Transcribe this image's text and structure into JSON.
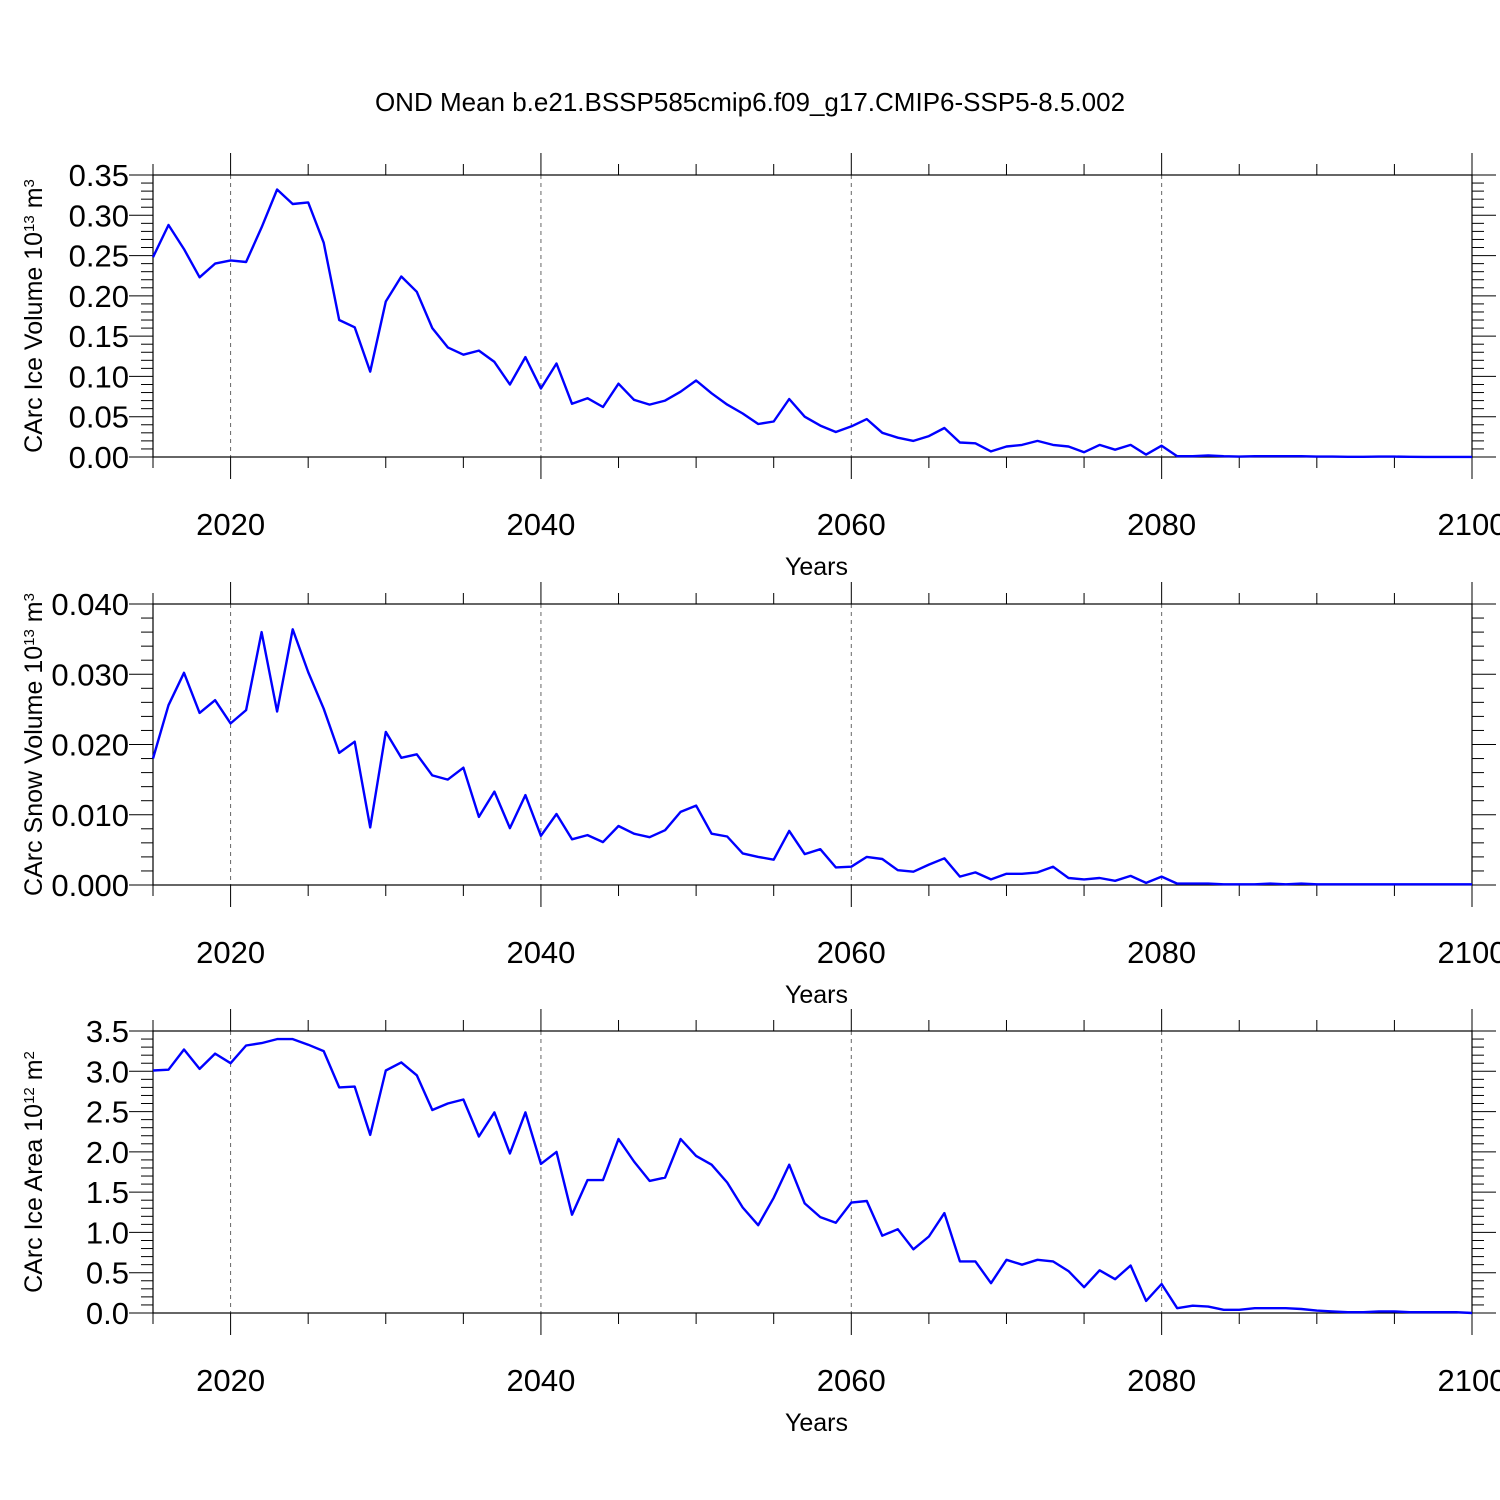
{
  "figure": {
    "title": "OND Mean b.e21.BSSP585cmip6.f09_g17.CMIP6-SSP5-8.5.002"
  },
  "chart_data": [
    {
      "type": "line",
      "title": "",
      "xlabel": "Years",
      "ylabel": "CArc Ice Volume 10",
      "ylabel_exp": "13",
      "ylabel_unit": " m",
      "ylabel_unit_exp": "3",
      "xlim": [
        2015,
        2100
      ],
      "ylim": [
        0,
        0.35
      ],
      "x_ticks": [
        "2020",
        "2040",
        "2060",
        "2080",
        "2100"
      ],
      "y_ticks": [
        "0.00",
        "0.05",
        "0.10",
        "0.15",
        "0.20",
        "0.25",
        "0.30",
        "0.35"
      ],
      "grid": "dashed vertical at major x ticks",
      "color": "#0000ff",
      "series": [
        {
          "x": [
            2015,
            2016,
            2017,
            2018,
            2019,
            2020,
            2021,
            2022,
            2023,
            2024,
            2025,
            2026,
            2027,
            2028,
            2029,
            2030,
            2031,
            2032,
            2033,
            2034,
            2035,
            2036,
            2037,
            2038,
            2039,
            2040,
            2041,
            2042,
            2043,
            2044,
            2045,
            2046,
            2047,
            2048,
            2049,
            2050,
            2051,
            2052,
            2053,
            2054,
            2055,
            2056,
            2057,
            2058,
            2059,
            2060,
            2061,
            2062,
            2063,
            2064,
            2065,
            2066,
            2067,
            2068,
            2069,
            2070,
            2071,
            2072,
            2073,
            2074,
            2075,
            2076,
            2077,
            2078,
            2079,
            2080,
            2081,
            2082,
            2083,
            2084,
            2085,
            2086,
            2087,
            2088,
            2089,
            2090,
            2091,
            2092,
            2093,
            2094,
            2095,
            2096,
            2097,
            2098,
            2099,
            2100
          ],
          "values": [
            0.248,
            0.288,
            0.258,
            0.223,
            0.24,
            0.244,
            0.242,
            0.285,
            0.332,
            0.314,
            0.316,
            0.266,
            0.17,
            0.161,
            0.106,
            0.193,
            0.224,
            0.205,
            0.16,
            0.136,
            0.127,
            0.132,
            0.118,
            0.09,
            0.124,
            0.085,
            0.116,
            0.066,
            0.073,
            0.062,
            0.091,
            0.071,
            0.065,
            0.07,
            0.081,
            0.095,
            0.079,
            0.065,
            0.054,
            0.041,
            0.044,
            0.072,
            0.05,
            0.039,
            0.031,
            0.038,
            0.047,
            0.03,
            0.024,
            0.02,
            0.026,
            0.036,
            0.018,
            0.017,
            0.007,
            0.013,
            0.015,
            0.02,
            0.015,
            0.013,
            0.006,
            0.015,
            0.009,
            0.015,
            0.003,
            0.014,
            0.001,
            0.001,
            0.002,
            0.001,
            0.0005,
            0.001,
            0.001,
            0.001,
            0.001,
            0.0005,
            0.0005,
            0.0002,
            0.0002,
            0.0005,
            0.0005,
            0.0002,
            0.0001,
            0.0001,
            0.0001,
            0.0001
          ]
        }
      ]
    },
    {
      "type": "line",
      "title": "",
      "xlabel": "Years",
      "ylabel": "CArc Snow Volume 10",
      "ylabel_exp": "13",
      "ylabel_unit": " m",
      "ylabel_unit_exp": "3",
      "xlim": [
        2015,
        2100
      ],
      "ylim": [
        0,
        0.04
      ],
      "x_ticks": [
        "2020",
        "2040",
        "2060",
        "2080",
        "2100"
      ],
      "y_ticks": [
        "0.000",
        "0.010",
        "0.020",
        "0.030",
        "0.040"
      ],
      "grid": "dashed vertical at major x ticks",
      "color": "#0000ff",
      "series": [
        {
          "x": [
            2015,
            2016,
            2017,
            2018,
            2019,
            2020,
            2021,
            2022,
            2023,
            2024,
            2025,
            2026,
            2027,
            2028,
            2029,
            2030,
            2031,
            2032,
            2033,
            2034,
            2035,
            2036,
            2037,
            2038,
            2039,
            2040,
            2041,
            2042,
            2043,
            2044,
            2045,
            2046,
            2047,
            2048,
            2049,
            2050,
            2051,
            2052,
            2053,
            2054,
            2055,
            2056,
            2057,
            2058,
            2059,
            2060,
            2061,
            2062,
            2063,
            2064,
            2065,
            2066,
            2067,
            2068,
            2069,
            2070,
            2071,
            2072,
            2073,
            2074,
            2075,
            2076,
            2077,
            2078,
            2079,
            2080,
            2081,
            2082,
            2083,
            2084,
            2085,
            2086,
            2087,
            2088,
            2089,
            2090,
            2091,
            2092,
            2093,
            2094,
            2095,
            2096,
            2097,
            2098,
            2099,
            2100
          ],
          "values": [
            0.018,
            0.0256,
            0.0302,
            0.0245,
            0.0263,
            0.023,
            0.0249,
            0.036,
            0.0247,
            0.0364,
            0.0303,
            0.0251,
            0.0188,
            0.0204,
            0.0082,
            0.0218,
            0.0181,
            0.0186,
            0.0156,
            0.015,
            0.0167,
            0.0097,
            0.0133,
            0.0081,
            0.0128,
            0.007,
            0.0101,
            0.0065,
            0.0071,
            0.0061,
            0.0084,
            0.0073,
            0.0068,
            0.0078,
            0.0104,
            0.0113,
            0.0073,
            0.0069,
            0.0045,
            0.004,
            0.0036,
            0.0077,
            0.0044,
            0.0051,
            0.0025,
            0.0026,
            0.004,
            0.0037,
            0.0021,
            0.0019,
            0.0029,
            0.0038,
            0.0012,
            0.0018,
            0.0008,
            0.0016,
            0.0016,
            0.0018,
            0.0026,
            0.001,
            0.0008,
            0.001,
            0.0006,
            0.0013,
            0.0003,
            0.0012,
            0.0002,
            0.0002,
            0.0002,
            0.0001,
            0.0001,
            0.0001,
            0.0002,
            0.0001,
            0.0002,
            0.0001,
            0.0001,
            0.0001,
            0.0001,
            0.0001,
            0.0001,
            0.0001,
            0.0001,
            0.0001,
            0.0001,
            0.0001
          ]
        }
      ]
    },
    {
      "type": "line",
      "title": "",
      "xlabel": "Years",
      "ylabel": "CArc Ice Area 10",
      "ylabel_exp": "12",
      "ylabel_unit": " m",
      "ylabel_unit_exp": "2",
      "xlim": [
        2015,
        2100
      ],
      "ylim": [
        0,
        3.5
      ],
      "x_ticks": [
        "2020",
        "2040",
        "2060",
        "2080",
        "2100"
      ],
      "y_ticks": [
        "0.0",
        "0.5",
        "1.0",
        "1.5",
        "2.0",
        "2.5",
        "3.0",
        "3.5"
      ],
      "grid": "dashed vertical at major x ticks",
      "color": "#0000ff",
      "series": [
        {
          "x": [
            2015,
            2016,
            2017,
            2018,
            2019,
            2020,
            2021,
            2022,
            2023,
            2024,
            2025,
            2026,
            2027,
            2028,
            2029,
            2030,
            2031,
            2032,
            2033,
            2034,
            2035,
            2036,
            2037,
            2038,
            2039,
            2040,
            2041,
            2042,
            2043,
            2044,
            2045,
            2046,
            2047,
            2048,
            2049,
            2050,
            2051,
            2052,
            2053,
            2054,
            2055,
            2056,
            2057,
            2058,
            2059,
            2060,
            2061,
            2062,
            2063,
            2064,
            2065,
            2066,
            2067,
            2068,
            2069,
            2070,
            2071,
            2072,
            2073,
            2074,
            2075,
            2076,
            2077,
            2078,
            2079,
            2080,
            2081,
            2082,
            2083,
            2084,
            2085,
            2086,
            2087,
            2088,
            2089,
            2090,
            2091,
            2092,
            2093,
            2094,
            2095,
            2096,
            2097,
            2098,
            2099,
            2100
          ],
          "values": [
            3.01,
            3.02,
            3.27,
            3.03,
            3.22,
            3.1,
            3.32,
            3.35,
            3.4,
            3.4,
            3.33,
            3.25,
            2.8,
            2.81,
            2.21,
            3.01,
            3.11,
            2.95,
            2.52,
            2.6,
            2.65,
            2.19,
            2.49,
            1.98,
            2.49,
            1.85,
            2.0,
            1.22,
            1.65,
            1.65,
            2.16,
            1.88,
            1.64,
            1.68,
            2.16,
            1.95,
            1.84,
            1.62,
            1.31,
            1.09,
            1.43,
            1.84,
            1.36,
            1.19,
            1.12,
            1.37,
            1.39,
            0.96,
            1.04,
            0.79,
            0.95,
            1.24,
            0.64,
            0.64,
            0.37,
            0.66,
            0.6,
            0.66,
            0.64,
            0.52,
            0.32,
            0.53,
            0.42,
            0.59,
            0.15,
            0.36,
            0.06,
            0.09,
            0.08,
            0.04,
            0.04,
            0.06,
            0.06,
            0.06,
            0.05,
            0.03,
            0.02,
            0.01,
            0.01,
            0.02,
            0.02,
            0.01,
            0.01,
            0.01,
            0.01,
            0.0
          ]
        }
      ]
    }
  ]
}
